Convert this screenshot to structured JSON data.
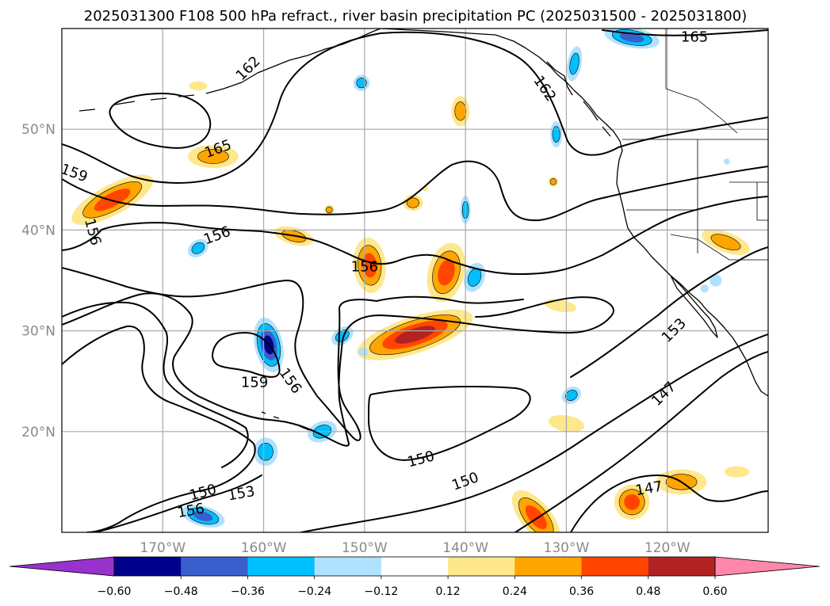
{
  "title": "2025031300 F108 500 hPa refract., river basin precipitation PC (2025031500 - 2025031800)",
  "chart_data": {
    "type": "contour",
    "title": "2025031300 F108 500 hPa refract., river basin precipitation PC (2025031500 - 2025031800)",
    "x_axis": {
      "ticks": [
        -170,
        -160,
        -150,
        -140,
        -130,
        -120
      ],
      "tick_labels": [
        "170°W",
        "160°W",
        "150°W",
        "140°W",
        "130°W",
        "120°W"
      ],
      "lim": [
        -180,
        -110
      ]
    },
    "y_axis": {
      "ticks": [
        20,
        30,
        40,
        50
      ],
      "tick_labels": [
        "20°N",
        "30°N",
        "40°N",
        "50°N"
      ],
      "lim": [
        10,
        60
      ]
    },
    "grid": true,
    "contour_levels": [
      147,
      150,
      153,
      156,
      159,
      162,
      165
    ],
    "contour_labels": [
      {
        "text": "165",
        "lon": -164.5,
        "lat": 48.0,
        "rot": -20
      },
      {
        "text": "165",
        "lon": -117.3,
        "lat": 59.1,
        "rot": 0
      },
      {
        "text": "162",
        "lon": -161.5,
        "lat": 56.0,
        "rot": -45
      },
      {
        "text": "162",
        "lon": -132.2,
        "lat": 54.0,
        "rot": 55
      },
      {
        "text": "159",
        "lon": -178.8,
        "lat": 45.6,
        "rot": 20
      },
      {
        "text": "159",
        "lon": -160.9,
        "lat": 24.8,
        "rot": 0
      },
      {
        "text": "156",
        "lon": -177.0,
        "lat": 39.8,
        "rot": 75
      },
      {
        "text": "156",
        "lon": -164.6,
        "lat": 39.4,
        "rot": -20
      },
      {
        "text": "156",
        "lon": -150.0,
        "lat": 36.3,
        "rot": 0
      },
      {
        "text": "156",
        "lon": -157.4,
        "lat": 25.0,
        "rot": 55
      },
      {
        "text": "156",
        "lon": -167.2,
        "lat": 12.1,
        "rot": -10
      },
      {
        "text": "153",
        "lon": -119.3,
        "lat": 30.0,
        "rot": -45
      },
      {
        "text": "153",
        "lon": -162.2,
        "lat": 13.8,
        "rot": -10
      },
      {
        "text": "150",
        "lon": -166.0,
        "lat": 13.9,
        "rot": -15
      },
      {
        "text": "150",
        "lon": -144.4,
        "lat": 17.2,
        "rot": -15
      },
      {
        "text": "150",
        "lon": -140.0,
        "lat": 15.0,
        "rot": -20
      },
      {
        "text": "147",
        "lon": -120.3,
        "lat": 23.7,
        "rot": -45
      },
      {
        "text": "147",
        "lon": -121.8,
        "lat": 14.3,
        "rot": -10
      }
    ],
    "colorbar": {
      "levels": [
        -0.6,
        -0.48,
        -0.36,
        -0.24,
        -0.12,
        0.12,
        0.24,
        0.36,
        0.48,
        0.6
      ],
      "tick_labels": [
        "−0.60",
        "−0.48",
        "−0.36",
        "−0.24",
        "−0.12",
        "0.12",
        "0.24",
        "0.36",
        "0.48",
        "0.60"
      ],
      "colors": [
        "#9932cc",
        "#00008b",
        "#3a5fcd",
        "#00bfff",
        "#b0e2ff",
        "#ffffff",
        "#ffe78c",
        "#ffa500",
        "#ff4500",
        "#b22222",
        "#ff88aa"
      ],
      "extend": "both"
    },
    "shaded_regions": [
      {
        "sign": "pos",
        "lon": -175.0,
        "lat": 43.0,
        "w": 9,
        "h": 3,
        "rot": 28,
        "peak": 3
      },
      {
        "sign": "pos",
        "lon": -165.0,
        "lat": 47.3,
        "w": 5,
        "h": 2.3,
        "rot": 0,
        "peak": 2
      },
      {
        "sign": "pos",
        "lon": -166.5,
        "lat": 54.3,
        "w": 1.8,
        "h": 0.9,
        "rot": 0,
        "peak": 1
      },
      {
        "sign": "pos",
        "lon": -157.0,
        "lat": 39.4,
        "w": 4,
        "h": 1.7,
        "rot": -15,
        "peak": 2
      },
      {
        "sign": "pos",
        "lon": -149.5,
        "lat": 36.5,
        "w": 3.2,
        "h": 5.5,
        "rot": 5,
        "peak": 3
      },
      {
        "sign": "pos",
        "lon": -141.9,
        "lat": 35.8,
        "w": 3.6,
        "h": 6.0,
        "rot": -15,
        "peak": 3
      },
      {
        "sign": "pos",
        "lon": -145.0,
        "lat": 29.6,
        "w": 12.0,
        "h": 3.6,
        "rot": 18,
        "peak": 4
      },
      {
        "sign": "pos",
        "lon": -140.5,
        "lat": 51.8,
        "w": 1.8,
        "h": 3.0,
        "rot": 0,
        "peak": 2
      },
      {
        "sign": "pos",
        "lon": -145.2,
        "lat": 42.7,
        "w": 2.0,
        "h": 1.6,
        "rot": 0,
        "peak": 2
      },
      {
        "sign": "pos",
        "lon": -153.5,
        "lat": 42.0,
        "w": 1.0,
        "h": 1.0,
        "rot": 0,
        "peak": 2
      },
      {
        "sign": "pos",
        "lon": -130.6,
        "lat": 32.5,
        "w": 3.2,
        "h": 1.2,
        "rot": -10,
        "peak": 1
      },
      {
        "sign": "pos",
        "lon": -130.0,
        "lat": 20.8,
        "w": 3.6,
        "h": 1.6,
        "rot": -10,
        "peak": 1
      },
      {
        "sign": "pos",
        "lon": -131.3,
        "lat": 44.8,
        "w": 1.0,
        "h": 1.0,
        "rot": 0,
        "peak": 2
      },
      {
        "sign": "pos",
        "lon": -114.2,
        "lat": 38.8,
        "w": 5.0,
        "h": 2.0,
        "rot": -20,
        "peak": 2
      },
      {
        "sign": "pos",
        "lon": -118.6,
        "lat": 15.0,
        "w": 5.0,
        "h": 2.5,
        "rot": 0,
        "peak": 2
      },
      {
        "sign": "pos",
        "lon": -123.5,
        "lat": 13.0,
        "w": 3.5,
        "h": 3.5,
        "rot": -30,
        "peak": 3
      },
      {
        "sign": "pos",
        "lon": -133.0,
        "lat": 11.5,
        "w": 3.0,
        "h": 6.5,
        "rot": 40,
        "peak": 3
      },
      {
        "sign": "pos",
        "lon": -113.1,
        "lat": 16.0,
        "w": 2.5,
        "h": 1.1,
        "rot": 0,
        "peak": 1
      },
      {
        "sign": "pos",
        "lon": -144.0,
        "lat": 44.1,
        "w": 0.5,
        "h": 0.5,
        "rot": 0,
        "peak": 1
      },
      {
        "sign": "neg",
        "lon": -159.5,
        "lat": 28.6,
        "w": 2.8,
        "h": 5.5,
        "rot": 12,
        "peak": 4
      },
      {
        "sign": "neg",
        "lon": -159.8,
        "lat": 18.0,
        "w": 2.4,
        "h": 2.8,
        "rot": 0,
        "peak": 2
      },
      {
        "sign": "neg",
        "lon": -154.2,
        "lat": 20.0,
        "w": 3.0,
        "h": 2.0,
        "rot": 20,
        "peak": 2
      },
      {
        "sign": "neg",
        "lon": -166.0,
        "lat": 11.6,
        "w": 4.4,
        "h": 2.0,
        "rot": -15,
        "peak": 3
      },
      {
        "sign": "neg",
        "lon": -152.2,
        "lat": 29.5,
        "w": 2.4,
        "h": 1.6,
        "rot": 35,
        "peak": 2
      },
      {
        "sign": "neg",
        "lon": -150.1,
        "lat": 27.9,
        "w": 1.0,
        "h": 0.8,
        "rot": 0,
        "peak": 1
      },
      {
        "sign": "neg",
        "lon": -139.1,
        "lat": 35.3,
        "w": 2.0,
        "h": 3.0,
        "rot": -20,
        "peak": 2
      },
      {
        "sign": "neg",
        "lon": -140.0,
        "lat": 42.0,
        "w": 1.0,
        "h": 2.8,
        "rot": 0,
        "peak": 2
      },
      {
        "sign": "neg",
        "lon": -150.3,
        "lat": 54.6,
        "w": 1.6,
        "h": 1.6,
        "rot": 0,
        "peak": 2
      },
      {
        "sign": "neg",
        "lon": -129.5,
        "lat": 23.6,
        "w": 2.0,
        "h": 1.6,
        "rot": 30,
        "peak": 2
      },
      {
        "sign": "neg",
        "lon": -131.0,
        "lat": 49.5,
        "w": 1.2,
        "h": 2.6,
        "rot": 0,
        "peak": 2
      },
      {
        "sign": "neg",
        "lon": -129.2,
        "lat": 56.5,
        "w": 1.4,
        "h": 3.5,
        "rot": -10,
        "peak": 2
      },
      {
        "sign": "neg",
        "lon": -123.5,
        "lat": 59.1,
        "w": 5.5,
        "h": 2.0,
        "rot": -10,
        "peak": 3
      },
      {
        "sign": "neg",
        "lon": -115.2,
        "lat": 35.0,
        "w": 1.2,
        "h": 1.2,
        "rot": 0,
        "peak": 1
      },
      {
        "sign": "neg",
        "lon": -116.3,
        "lat": 34.2,
        "w": 0.8,
        "h": 0.8,
        "rot": 0,
        "peak": 1
      },
      {
        "sign": "neg",
        "lon": -166.5,
        "lat": 38.2,
        "w": 2.2,
        "h": 1.6,
        "rot": 35,
        "peak": 2
      },
      {
        "sign": "neg",
        "lon": -114.1,
        "lat": 46.8,
        "w": 0.6,
        "h": 0.6,
        "rot": 0,
        "peak": 1
      }
    ]
  }
}
